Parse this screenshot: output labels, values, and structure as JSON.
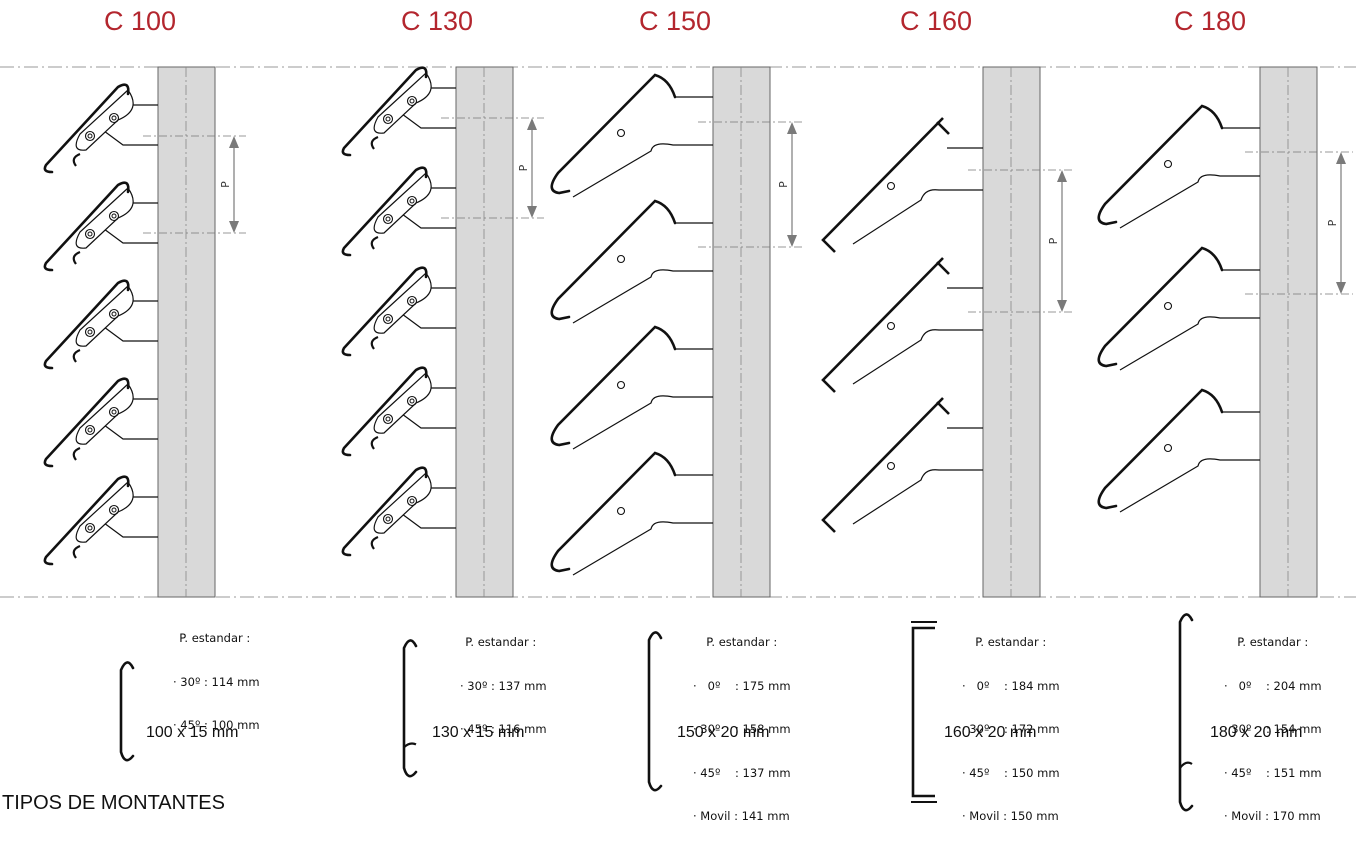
{
  "section_heading": "TIPOS DE MONTANTES",
  "pitch_label": "P",
  "colors": {
    "title": "#b3262e",
    "mullion": "#d9d9d9",
    "line": "#111111",
    "dim": "#7a7a7a"
  },
  "models": [
    {
      "title": "C 100",
      "std_label": "P. estandar :",
      "std_rows": [
        "· 30º : 114 mm",
        "· 45º : 100 mm"
      ],
      "profile_size": "100 x 15 mm"
    },
    {
      "title": "C 130",
      "std_label": "P. estandar :",
      "std_rows": [
        "· 30º : 137 mm",
        "· 45º : 116 mm"
      ],
      "profile_size": "130 x 15 mm"
    },
    {
      "title": "C 150",
      "std_label": "P. estandar :",
      "std_rows": [
        "·   0º    : 175 mm",
        "· 30º    : 158 mm",
        "· 45º    : 137 mm",
        "· Movil : 141 mm"
      ],
      "profile_size": "150 x 20 mm"
    },
    {
      "title": "C 160",
      "std_label": "P. estandar :",
      "std_rows": [
        "·   0º    : 184 mm",
        "· 30º    : 172 mm",
        "· 45º    : 150 mm",
        "· Movil : 150 mm"
      ],
      "profile_size": "160 x 20 mm"
    },
    {
      "title": "C 180",
      "std_label": "P. estandar :",
      "std_rows": [
        "·   0º    : 204 mm",
        "· 30º    : 154 mm",
        "· 45º    : 151 mm",
        "· Movil : 170 mm"
      ],
      "profile_size": "180 x 20 mm"
    }
  ]
}
